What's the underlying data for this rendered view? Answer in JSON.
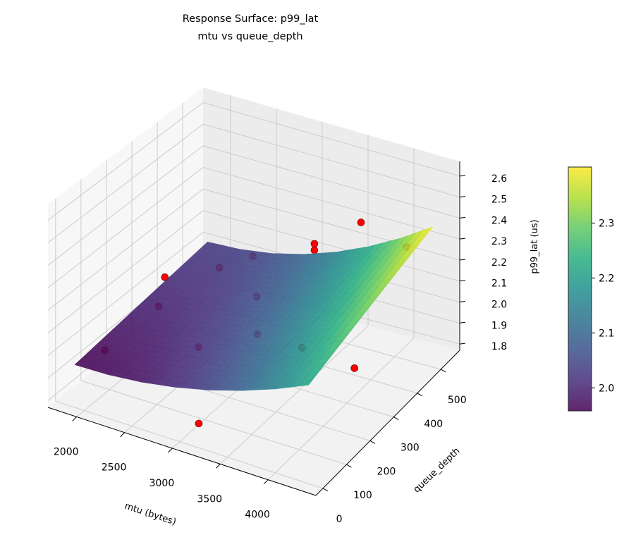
{
  "chart_data": {
    "type": "surface3d",
    "title": "Response Surface: p99_lat",
    "subtitle": "mtu vs queue_depth",
    "xlabel": "mtu (bytes)",
    "ylabel": "queue_depth",
    "zlabel": "p99_lat (us)",
    "xlim": [
      1700,
      4500
    ],
    "ylim": [
      -30,
      580
    ],
    "zlim": [
      1.77,
      2.67
    ],
    "xticks": [
      2000,
      2500,
      3000,
      3500,
      4000
    ],
    "yticks": [
      0,
      100,
      200,
      300,
      400,
      500
    ],
    "zticks": [
      1.8,
      1.9,
      2.0,
      2.1,
      2.2,
      2.3,
      2.4,
      2.5,
      2.6
    ],
    "grid": true,
    "colormap": "viridis",
    "colorbar": {
      "range": [
        1.958,
        2.402
      ],
      "ticks": [
        2.0,
        2.1,
        2.2,
        2.3
      ],
      "placement": "right"
    },
    "surface": {
      "x": [
        1900,
        2250,
        2600,
        2950,
        3300,
        3650,
        4000,
        4350
      ],
      "y": [
        0,
        75,
        150,
        225,
        300,
        375,
        450,
        525
      ],
      "z": [
        [
          1.96,
          1.965,
          1.981,
          2.008,
          2.045,
          2.093,
          2.151,
          2.22
        ],
        [
          1.97,
          1.976,
          1.992,
          2.021,
          2.06,
          2.111,
          2.173,
          2.246
        ],
        [
          1.98,
          1.986,
          2.004,
          2.034,
          2.075,
          2.129,
          2.194,
          2.271
        ],
        [
          1.99,
          1.996,
          2.015,
          2.047,
          2.09,
          2.147,
          2.216,
          2.297
        ],
        [
          2.0,
          2.007,
          2.026,
          2.059,
          2.106,
          2.165,
          2.237,
          2.323
        ],
        [
          2.01,
          2.017,
          2.038,
          2.072,
          2.121,
          2.183,
          2.259,
          2.349
        ],
        [
          2.02,
          2.027,
          2.049,
          2.085,
          2.136,
          2.201,
          2.28,
          2.374
        ],
        [
          2.03,
          2.038,
          2.06,
          2.098,
          2.151,
          2.219,
          2.302,
          2.4
        ]
      ]
    },
    "points": {
      "color": "#ff0000",
      "x": [
        1950,
        2120,
        2120,
        2540,
        2820,
        3100,
        3380,
        2900,
        3660,
        3240,
        3240,
        3660,
        4160,
        4220,
        3200
      ],
      "y": [
        100,
        275,
        250,
        336,
        366,
        275,
        170,
        115,
        245,
        458,
        458,
        490,
        488,
        245,
        0
      ],
      "z": [
        1.94,
        2.13,
        2.02,
        2.17,
        2.23,
        2.17,
        2.14,
        2.07,
        2.04,
        2.22,
        2.25,
        2.37,
        2.32,
        2.02,
        1.88
      ]
    }
  }
}
